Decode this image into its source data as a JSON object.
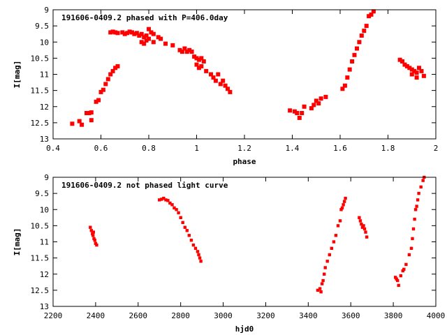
{
  "colors": {
    "points": "#ff0000",
    "axes": "#000000",
    "background": "#ffffff"
  },
  "chart_data": [
    {
      "type": "scatter",
      "title": "191606-0409.2 phased with P=406.0day",
      "xlabel": "phase",
      "ylabel": "I[mag]",
      "xlim": [
        0.4,
        2.0
      ],
      "ylim": [
        9,
        13
      ],
      "y_inverted": true,
      "grid": false,
      "legend": "none",
      "xticks": [
        "0.4",
        "0.6",
        "0.8",
        "1",
        "1.2",
        "1.4",
        "1.6",
        "1.8",
        "2"
      ],
      "xtick_values": [
        0.4,
        0.6,
        0.8,
        1.0,
        1.2,
        1.4,
        1.6,
        1.8,
        2.0
      ],
      "yticks": [
        "9",
        "9.5",
        "10",
        "10.5",
        "11",
        "11.5",
        "12",
        "12.5",
        "13"
      ],
      "ytick_values": [
        9,
        9.5,
        10,
        10.5,
        11,
        11.5,
        12,
        12.5,
        13
      ],
      "points": [
        [
          0.48,
          12.53
        ],
        [
          0.51,
          12.45
        ],
        [
          0.52,
          12.56
        ],
        [
          0.54,
          12.2
        ],
        [
          0.55,
          12.2
        ],
        [
          0.56,
          12.18
        ],
        [
          0.56,
          12.42
        ],
        [
          0.58,
          11.85
        ],
        [
          0.59,
          11.8
        ],
        [
          0.6,
          11.55
        ],
        [
          0.61,
          11.48
        ],
        [
          0.62,
          11.3
        ],
        [
          0.63,
          11.15
        ],
        [
          0.64,
          11.0
        ],
        [
          0.65,
          10.9
        ],
        [
          0.66,
          10.8
        ],
        [
          0.67,
          10.75
        ],
        [
          0.64,
          9.7
        ],
        [
          0.65,
          9.68
        ],
        [
          0.66,
          9.7
        ],
        [
          0.67,
          9.72
        ],
        [
          0.69,
          9.7
        ],
        [
          0.7,
          9.75
        ],
        [
          0.71,
          9.72
        ],
        [
          0.72,
          9.68
        ],
        [
          0.73,
          9.7
        ],
        [
          0.74,
          9.75
        ],
        [
          0.75,
          9.72
        ],
        [
          0.76,
          9.8
        ],
        [
          0.77,
          9.75
        ],
        [
          0.78,
          9.85
        ],
        [
          0.79,
          9.8
        ],
        [
          0.8,
          9.6
        ],
        [
          0.81,
          9.7
        ],
        [
          0.82,
          9.75
        ],
        [
          0.77,
          10.0
        ],
        [
          0.78,
          10.05
        ],
        [
          0.79,
          9.95
        ],
        [
          0.8,
          9.9
        ],
        [
          0.82,
          10.0
        ],
        [
          0.84,
          9.85
        ],
        [
          0.85,
          9.9
        ],
        [
          0.87,
          10.05
        ],
        [
          0.9,
          10.1
        ],
        [
          0.93,
          10.25
        ],
        [
          0.94,
          10.3
        ],
        [
          0.95,
          10.2
        ],
        [
          0.96,
          10.3
        ],
        [
          0.97,
          10.25
        ],
        [
          0.98,
          10.3
        ],
        [
          0.99,
          10.45
        ],
        [
          1.0,
          10.5
        ],
        [
          1.01,
          10.55
        ],
        [
          1.02,
          10.5
        ],
        [
          1.0,
          10.7
        ],
        [
          1.01,
          10.8
        ],
        [
          1.02,
          10.75
        ],
        [
          1.03,
          10.6
        ],
        [
          1.04,
          10.9
        ],
        [
          1.06,
          11.0
        ],
        [
          1.07,
          11.1
        ],
        [
          1.08,
          11.2
        ],
        [
          1.09,
          11.0
        ],
        [
          1.1,
          11.3
        ],
        [
          1.11,
          11.2
        ],
        [
          1.12,
          11.35
        ],
        [
          1.13,
          11.45
        ],
        [
          1.14,
          11.55
        ],
        [
          1.39,
          12.12
        ],
        [
          1.41,
          12.15
        ],
        [
          1.42,
          12.2
        ],
        [
          1.43,
          12.35
        ],
        [
          1.44,
          12.2
        ],
        [
          1.45,
          12.0
        ],
        [
          1.48,
          12.05
        ],
        [
          1.49,
          11.95
        ],
        [
          1.5,
          11.82
        ],
        [
          1.51,
          11.9
        ],
        [
          1.52,
          11.75
        ],
        [
          1.54,
          11.7
        ],
        [
          1.61,
          11.45
        ],
        [
          1.62,
          11.35
        ],
        [
          1.63,
          11.1
        ],
        [
          1.64,
          10.85
        ],
        [
          1.65,
          10.6
        ],
        [
          1.66,
          10.4
        ],
        [
          1.67,
          10.2
        ],
        [
          1.68,
          10.0
        ],
        [
          1.69,
          9.8
        ],
        [
          1.7,
          9.65
        ],
        [
          1.71,
          9.5
        ],
        [
          1.72,
          9.2
        ],
        [
          1.73,
          9.15
        ],
        [
          1.74,
          9.05
        ],
        [
          1.85,
          10.55
        ],
        [
          1.86,
          10.6
        ],
        [
          1.87,
          10.7
        ],
        [
          1.88,
          10.75
        ],
        [
          1.89,
          10.8
        ],
        [
          1.9,
          10.85
        ],
        [
          1.91,
          10.9
        ],
        [
          1.92,
          10.95
        ],
        [
          1.93,
          10.8
        ],
        [
          1.94,
          10.9
        ],
        [
          1.95,
          11.05
        ],
        [
          1.92,
          11.1
        ],
        [
          1.9,
          11.0
        ]
      ]
    },
    {
      "type": "scatter",
      "title": "191606-0409.2 not phased light curve",
      "xlabel": "hjd0",
      "ylabel": "I[mag]",
      "xlim": [
        2200,
        4000
      ],
      "ylim": [
        9,
        13
      ],
      "y_inverted": true,
      "grid": false,
      "legend": "none",
      "xticks": [
        "2200",
        "2400",
        "2600",
        "2800",
        "3000",
        "3200",
        "3400",
        "3600",
        "3800",
        "4000"
      ],
      "xtick_values": [
        2200,
        2400,
        2600,
        2800,
        3000,
        3200,
        3400,
        3600,
        3800,
        4000
      ],
      "yticks": [
        "9",
        "9.5",
        "10",
        "10.5",
        "11",
        "11.5",
        "12",
        "12.5",
        "13"
      ],
      "ytick_values": [
        9,
        9.5,
        10,
        10.5,
        11,
        11.5,
        12,
        12.5,
        13
      ],
      "points": [
        [
          2375,
          10.55
        ],
        [
          2380,
          10.65
        ],
        [
          2385,
          10.75
        ],
        [
          2388,
          10.8
        ],
        [
          2392,
          10.9
        ],
        [
          2396,
          10.95
        ],
        [
          2400,
          11.05
        ],
        [
          2405,
          11.1
        ],
        [
          2390,
          10.7
        ],
        [
          2700,
          9.7
        ],
        [
          2710,
          9.68
        ],
        [
          2720,
          9.65
        ],
        [
          2730,
          9.7
        ],
        [
          2740,
          9.72
        ],
        [
          2750,
          9.8
        ],
        [
          2760,
          9.85
        ],
        [
          2770,
          9.95
        ],
        [
          2780,
          10.0
        ],
        [
          2790,
          10.1
        ],
        [
          2800,
          10.25
        ],
        [
          2810,
          10.4
        ],
        [
          2820,
          10.55
        ],
        [
          2830,
          10.65
        ],
        [
          2840,
          10.8
        ],
        [
          2850,
          10.95
        ],
        [
          2860,
          11.1
        ],
        [
          2870,
          11.2
        ],
        [
          2880,
          11.3
        ],
        [
          2885,
          11.4
        ],
        [
          2890,
          11.5
        ],
        [
          2895,
          11.6
        ],
        [
          3445,
          12.5
        ],
        [
          3455,
          12.45
        ],
        [
          3460,
          12.55
        ],
        [
          3465,
          12.3
        ],
        [
          3470,
          12.2
        ],
        [
          3475,
          12.0
        ],
        [
          3480,
          11.8
        ],
        [
          3490,
          11.6
        ],
        [
          3500,
          11.4
        ],
        [
          3510,
          11.2
        ],
        [
          3520,
          11.0
        ],
        [
          3530,
          10.8
        ],
        [
          3540,
          10.5
        ],
        [
          3550,
          10.35
        ],
        [
          3555,
          10.0
        ],
        [
          3560,
          9.95
        ],
        [
          3565,
          9.85
        ],
        [
          3570,
          9.75
        ],
        [
          3575,
          9.65
        ],
        [
          3640,
          10.25
        ],
        [
          3645,
          10.35
        ],
        [
          3650,
          10.45
        ],
        [
          3655,
          10.55
        ],
        [
          3660,
          10.5
        ],
        [
          3665,
          10.6
        ],
        [
          3670,
          10.7
        ],
        [
          3675,
          10.85
        ],
        [
          3810,
          12.1
        ],
        [
          3815,
          12.15
        ],
        [
          3820,
          12.2
        ],
        [
          3825,
          12.35
        ],
        [
          3835,
          12.05
        ],
        [
          3845,
          11.9
        ],
        [
          3850,
          11.85
        ],
        [
          3860,
          11.7
        ],
        [
          3875,
          11.4
        ],
        [
          3885,
          11.2
        ],
        [
          3890,
          10.9
        ],
        [
          3895,
          10.6
        ],
        [
          3900,
          10.3
        ],
        [
          3905,
          10.0
        ],
        [
          3910,
          9.9
        ],
        [
          3915,
          9.7
        ],
        [
          3920,
          9.5
        ],
        [
          3930,
          9.3
        ],
        [
          3940,
          9.1
        ],
        [
          3945,
          9.0
        ]
      ]
    }
  ]
}
